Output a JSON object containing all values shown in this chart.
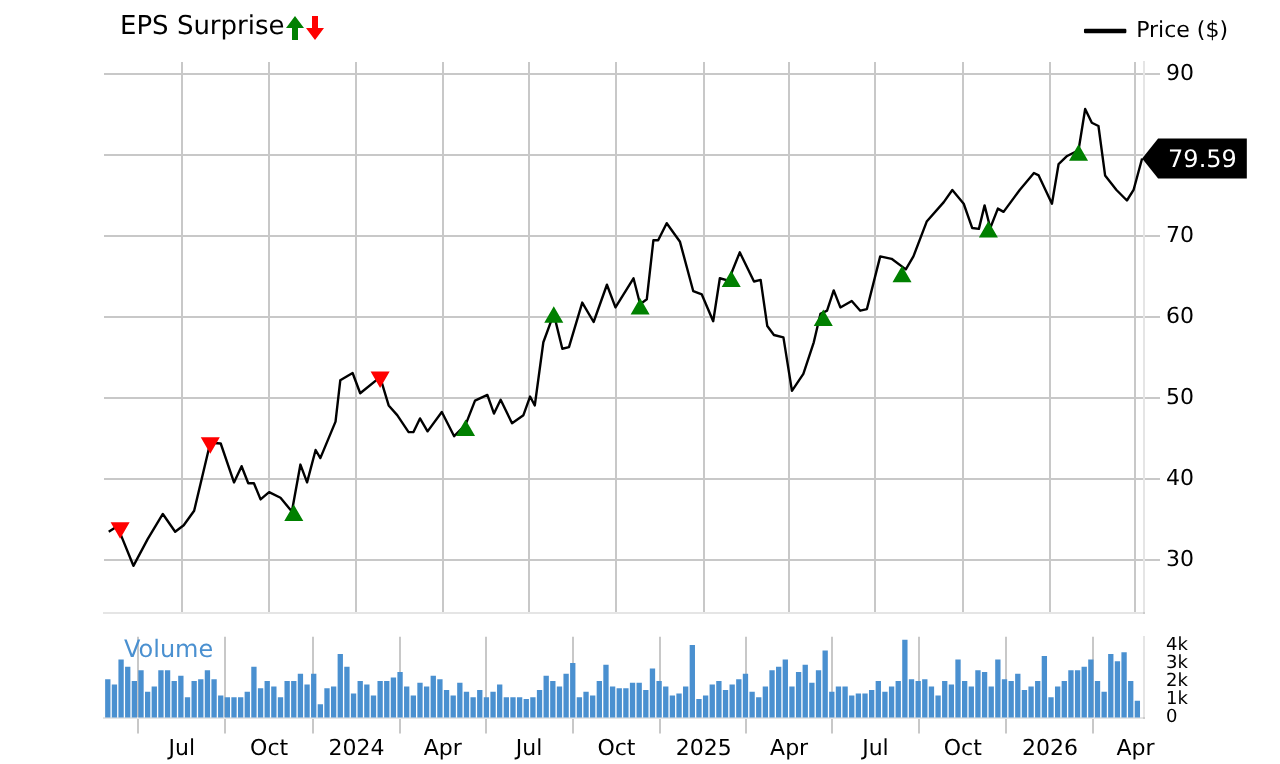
{
  "chart_data": [
    {
      "type": "line",
      "legend_title": "EPS Surprise",
      "legend": "top right",
      "grid": true,
      "marker": "none",
      "tick_labels": "y",
      "xlim": [
        "2023-04-10",
        "2026-04-10"
      ],
      "xticks": [
        {
          "value": "2023-07-01",
          "label": null
        },
        {
          "value": "2023-10-01",
          "label": null
        },
        {
          "value": "2024-01-01",
          "label": null
        },
        {
          "value": "2024-04-01",
          "label": null
        },
        {
          "value": "2024-07-01",
          "label": null
        },
        {
          "value": "2024-10-01",
          "label": null
        },
        {
          "value": "2025-01-01",
          "label": null
        },
        {
          "value": "2025-04-01",
          "label": null
        },
        {
          "value": "2025-07-01",
          "label": null
        },
        {
          "value": "2025-10-01",
          "label": null
        },
        {
          "value": "2026-01-01",
          "label": null
        },
        {
          "value": "2026-04-01",
          "label": null
        }
      ],
      "ylim": [
        23.5,
        91.5
      ],
      "yticks": [
        30,
        40,
        50,
        60,
        70,
        {
          "value": 80,
          "label": null
        },
        90
      ],
      "annotations": [
        {
          "text": "79.59",
          "x": "2026-04-08",
          "y": 79.59
        }
      ],
      "series": [
        {
          "name": "Price ($)",
          "color": "#000000",
          "x": [
            "2023-04-15",
            "2023-04-24",
            "2023-05-11",
            "2023-05-26",
            "2023-06-11",
            "2023-06-24",
            "2023-07-03",
            "2023-07-14",
            "2023-07-31",
            "2023-08-11",
            "2023-08-25",
            "2023-09-02",
            "2023-09-09",
            "2023-09-15",
            "2023-09-22",
            "2023-10-01",
            "2023-10-13",
            "2023-10-25",
            "2023-11-03",
            "2023-11-10",
            "2023-11-19",
            "2023-11-24",
            "2023-12-10",
            "2023-12-15",
            "2023-12-28",
            "2024-01-05",
            "2024-01-26",
            "2024-02-04",
            "2024-02-13",
            "2024-02-25",
            "2024-03-01",
            "2024-03-08",
            "2024-03-16",
            "2024-03-31",
            "2024-04-13",
            "2024-04-25",
            "2024-05-05",
            "2024-05-18",
            "2024-05-25",
            "2024-06-01",
            "2024-06-13",
            "2024-06-25",
            "2024-07-02",
            "2024-07-07",
            "2024-07-16",
            "2024-07-27",
            "2024-08-05",
            "2024-08-12",
            "2024-08-26",
            "2024-09-07",
            "2024-09-21",
            "2024-09-30",
            "2024-10-19",
            "2024-10-26",
            "2024-11-02",
            "2024-11-09",
            "2024-11-14",
            "2024-11-23",
            "2024-12-07",
            "2024-12-21",
            "2024-12-30",
            "2025-01-11",
            "2025-01-18",
            "2025-01-27",
            "2025-02-08",
            "2025-02-23",
            "2025-03-02",
            "2025-03-09",
            "2025-03-16",
            "2025-03-26",
            "2025-04-04",
            "2025-04-16",
            "2025-04-27",
            "2025-05-04",
            "2025-05-11",
            "2025-05-18",
            "2025-05-25",
            "2025-06-06",
            "2025-06-15",
            "2025-06-22",
            "2025-07-06",
            "2025-07-18",
            "2025-08-02",
            "2025-08-10",
            "2025-08-24",
            "2025-09-11",
            "2025-09-20",
            "2025-10-02",
            "2025-10-11",
            "2025-10-18",
            "2025-10-24",
            "2025-10-30",
            "2025-11-07",
            "2025-11-13",
            "2025-11-30",
            "2025-12-15",
            "2025-12-20",
            "2026-01-03",
            "2026-01-10",
            "2026-01-19",
            "2026-01-31",
            "2026-02-07",
            "2026-02-14",
            "2026-02-21",
            "2026-02-28",
            "2026-03-12",
            "2026-03-23",
            "2026-03-30",
            "2026-04-08"
          ],
          "values": [
            33.5,
            34.2,
            29.3,
            32.6,
            35.7,
            33.5,
            34.3,
            36.1,
            44.5,
            44.4,
            39.6,
            41.6,
            39.5,
            39.5,
            37.5,
            38.4,
            37.7,
            36.0,
            41.8,
            39.6,
            43.6,
            42.6,
            47.1,
            52.2,
            53.1,
            50.6,
            52.6,
            49.1,
            47.9,
            45.8,
            45.8,
            47.5,
            45.9,
            48.3,
            45.3,
            46.7,
            49.7,
            50.4,
            48.1,
            49.8,
            46.9,
            47.9,
            50.2,
            49.1,
            56.9,
            60.4,
            56.1,
            56.3,
            61.8,
            59.4,
            64.0,
            61.2,
            64.8,
            61.6,
            62.2,
            69.5,
            69.5,
            71.6,
            69.3,
            63.2,
            62.8,
            59.5,
            64.8,
            64.5,
            68.0,
            64.4,
            64.6,
            58.9,
            57.8,
            57.5,
            50.9,
            53.0,
            56.9,
            60.4,
            60.8,
            63.3,
            61.2,
            62.0,
            60.8,
            61.0,
            67.5,
            67.2,
            65.9,
            67.5,
            71.8,
            74.2,
            75.7,
            74.0,
            71.0,
            70.9,
            73.8,
            71.0,
            73.4,
            73.0,
            75.7,
            77.8,
            77.5,
            74.0,
            78.9,
            79.9,
            80.6,
            85.7,
            84.0,
            83.6,
            77.5,
            75.7,
            74.4,
            75.7,
            79.59
          ]
        },
        {
          "type": "scatter",
          "marker": "triangle",
          "color": "#008000",
          "x": [
            "2023-10-27",
            "2024-04-25",
            "2024-07-27",
            "2024-10-26",
            "2025-01-30",
            "2025-05-07",
            "2025-07-29",
            "2025-10-28",
            "2026-01-31"
          ],
          "values": [
            35.5,
            46.0,
            60.0,
            61.0,
            64.4,
            59.6,
            65.0,
            70.5,
            80.0
          ]
        },
        {
          "type": "scatter",
          "marker": "triangle",
          "color": "#ff0000",
          "x": [
            "2023-04-27",
            "2023-07-31",
            "2024-01-26"
          ],
          "values": [
            34.0,
            44.5,
            52.6
          ]
        }
      ]
    },
    {
      "type": "bar",
      "grid": "x",
      "legend": false,
      "xlim": [
        "2023-04-10",
        "2026-04-10"
      ],
      "xticks": [
        {
          "value": "2023-07-01",
          "label": "Jul"
        },
        {
          "value": "2023-10-01",
          "label": "Oct"
        },
        {
          "value": "2024-01-01",
          "label": "2024"
        },
        {
          "value": "2024-04-01",
          "label": "Apr"
        },
        {
          "value": "2024-07-01",
          "label": "Jul"
        },
        {
          "value": "2024-10-01",
          "label": "Oct"
        },
        {
          "value": "2025-01-01",
          "label": "2025"
        },
        {
          "value": "2025-04-01",
          "label": "Apr"
        },
        {
          "value": "2025-07-01",
          "label": "Jul"
        },
        {
          "value": "2025-10-01",
          "label": "Oct"
        },
        {
          "value": "2026-01-01",
          "label": "2026"
        },
        {
          "value": "2026-04-01",
          "label": "Apr"
        }
      ],
      "ylim": [
        0,
        4500
      ],
      "yticks": [
        0,
        {
          "value": 1000,
          "label": "1k"
        },
        {
          "value": 2000,
          "label": "2k"
        },
        {
          "value": 3000,
          "label": "3k"
        },
        {
          "value": 4000,
          "label": "4k"
        }
      ],
      "series": [
        {
          "name": "Volume",
          "color": "#4a90d0",
          "x": [
            "2023-04-14",
            "2023-04-21",
            "2023-04-28",
            "2023-05-05",
            "2023-05-12",
            "2023-05-19",
            "2023-05-26",
            "2023-06-02",
            "2023-06-09",
            "2023-06-16",
            "2023-06-23",
            "2023-06-30",
            "2023-07-07",
            "2023-07-14",
            "2023-07-21",
            "2023-07-28",
            "2023-08-04",
            "2023-08-11",
            "2023-08-18",
            "2023-08-25",
            "2023-09-01",
            "2023-09-08",
            "2023-09-15",
            "2023-09-22",
            "2023-09-29",
            "2023-10-06",
            "2023-10-13",
            "2023-10-20",
            "2023-10-27",
            "2023-11-03",
            "2023-11-10",
            "2023-11-17",
            "2023-11-24",
            "2023-12-01",
            "2023-12-08",
            "2023-12-15",
            "2023-12-22",
            "2023-12-29",
            "2024-01-05",
            "2024-01-12",
            "2024-01-19",
            "2024-01-26",
            "2024-02-02",
            "2024-02-09",
            "2024-02-16",
            "2024-02-23",
            "2024-03-01",
            "2024-03-08",
            "2024-03-15",
            "2024-03-22",
            "2024-03-29",
            "2024-04-05",
            "2024-04-12",
            "2024-04-19",
            "2024-04-26",
            "2024-05-03",
            "2024-05-10",
            "2024-05-17",
            "2024-05-24",
            "2024-05-31",
            "2024-06-07",
            "2024-06-14",
            "2024-06-21",
            "2024-06-28",
            "2024-07-05",
            "2024-07-12",
            "2024-07-19",
            "2024-07-26",
            "2024-08-02",
            "2024-08-09",
            "2024-08-16",
            "2024-08-23",
            "2024-08-30",
            "2024-09-06",
            "2024-09-13",
            "2024-09-20",
            "2024-09-27",
            "2024-10-04",
            "2024-10-11",
            "2024-10-18",
            "2024-10-25",
            "2024-11-01",
            "2024-11-08",
            "2024-11-15",
            "2024-11-22",
            "2024-11-29",
            "2024-12-06",
            "2024-12-13",
            "2024-12-20",
            "2024-12-27",
            "2025-01-03",
            "2025-01-10",
            "2025-01-17",
            "2025-01-24",
            "2025-01-31",
            "2025-02-07",
            "2025-02-14",
            "2025-02-21",
            "2025-02-28",
            "2025-03-07",
            "2025-03-14",
            "2025-03-21",
            "2025-03-28",
            "2025-04-04",
            "2025-04-11",
            "2025-04-18",
            "2025-04-25",
            "2025-05-02",
            "2025-05-09",
            "2025-05-16",
            "2025-05-23",
            "2025-05-30",
            "2025-06-06",
            "2025-06-13",
            "2025-06-20",
            "2025-06-27",
            "2025-07-04",
            "2025-07-11",
            "2025-07-18",
            "2025-07-25",
            "2025-08-01",
            "2025-08-08",
            "2025-08-15",
            "2025-08-22",
            "2025-08-29",
            "2025-09-05",
            "2025-09-12",
            "2025-09-19",
            "2025-09-26",
            "2025-10-03",
            "2025-10-10",
            "2025-10-17",
            "2025-10-24",
            "2025-10-31",
            "2025-11-07",
            "2025-11-14",
            "2025-11-21",
            "2025-11-28",
            "2025-12-05",
            "2025-12-12",
            "2025-12-19",
            "2025-12-26",
            "2026-01-02",
            "2026-01-09",
            "2026-01-16",
            "2026-01-23",
            "2026-01-30",
            "2026-02-06",
            "2026-02-13",
            "2026-02-20",
            "2026-02-27",
            "2026-03-06",
            "2026-03-13",
            "2026-03-20",
            "2026-03-27",
            "2026-04-03"
          ],
          "values": [
            2100,
            1800,
            3200,
            2800,
            2000,
            2600,
            1400,
            1700,
            2600,
            2600,
            2000,
            2300,
            1100,
            2000,
            2100,
            2600,
            2100,
            1200,
            1100,
            1100,
            1100,
            1400,
            2800,
            1600,
            2000,
            1700,
            1100,
            2000,
            2000,
            2400,
            1800,
            2400,
            700,
            1600,
            1700,
            3500,
            2800,
            1300,
            2000,
            1800,
            1200,
            2000,
            2000,
            2200,
            2500,
            1700,
            1200,
            1900,
            1700,
            2300,
            2100,
            1500,
            1200,
            1900,
            1400,
            1100,
            1500,
            1100,
            1400,
            1800,
            1100,
            1100,
            1100,
            1000,
            1100,
            1500,
            2300,
            2000,
            1700,
            2400,
            3000,
            1100,
            1400,
            1200,
            2000,
            2900,
            1700,
            1600,
            1600,
            1900,
            1900,
            1500,
            2700,
            2000,
            1700,
            1200,
            1300,
            1700,
            4000,
            1000,
            1200,
            1800,
            2000,
            1500,
            1800,
            2100,
            2400,
            1400,
            1100,
            1700,
            2600,
            2800,
            3200,
            1700,
            2500,
            2900,
            1900,
            2600,
            3700,
            1400,
            1700,
            1700,
            1200,
            1300,
            1300,
            1500,
            2000,
            1400,
            1700,
            2000,
            4300,
            2100,
            2000,
            2100,
            1700,
            1200,
            2000,
            1800,
            3200,
            2000,
            1700,
            2600,
            2500,
            1700,
            3200,
            2100,
            2000,
            2400,
            1500,
            1700,
            2000,
            3400,
            1100,
            1700,
            2000,
            2600,
            2600,
            2800,
            3200,
            2000,
            1400,
            3500,
            3100,
            3600,
            2000,
            900
          ]
        }
      ]
    }
  ]
}
